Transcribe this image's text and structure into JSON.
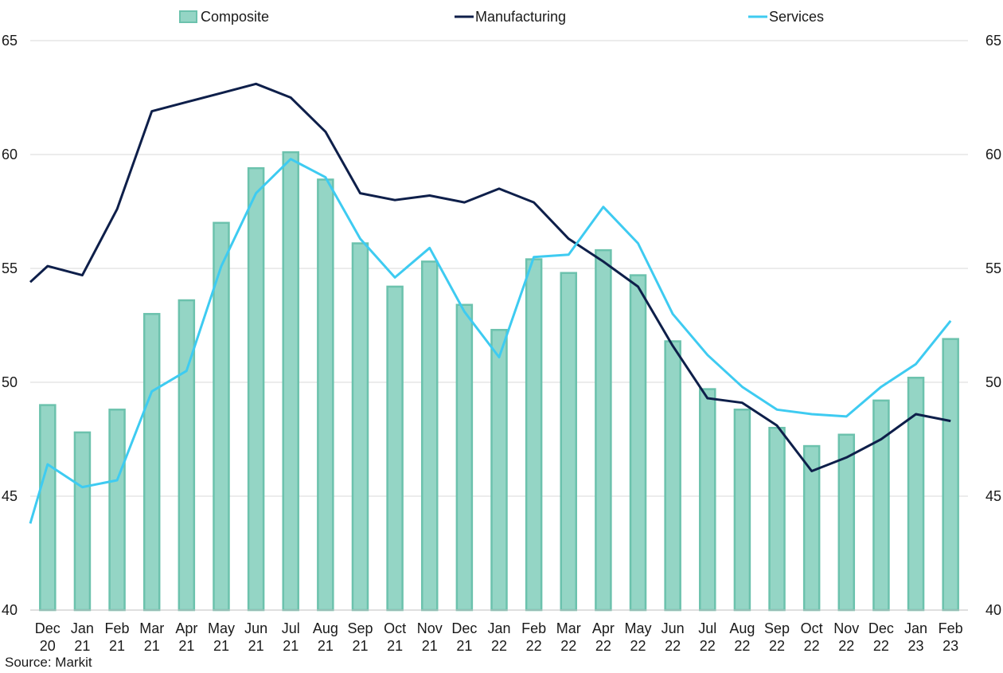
{
  "chart_data": {
    "type": "bar",
    "categories": [
      [
        "Dec",
        "20"
      ],
      [
        "Jan",
        "21"
      ],
      [
        "Feb",
        "21"
      ],
      [
        "Mar",
        "21"
      ],
      [
        "Apr",
        "21"
      ],
      [
        "May",
        "21"
      ],
      [
        "Jun",
        "21"
      ],
      [
        "Jul",
        "21"
      ],
      [
        "Aug",
        "21"
      ],
      [
        "Sep",
        "21"
      ],
      [
        "Oct",
        "21"
      ],
      [
        "Nov",
        "21"
      ],
      [
        "Dec",
        "21"
      ],
      [
        "Jan",
        "22"
      ],
      [
        "Feb",
        "22"
      ],
      [
        "Mar",
        "22"
      ],
      [
        "Apr",
        "22"
      ],
      [
        "May",
        "22"
      ],
      [
        "Jun",
        "22"
      ],
      [
        "Jul",
        "22"
      ],
      [
        "Aug",
        "22"
      ],
      [
        "Sep",
        "22"
      ],
      [
        "Oct",
        "22"
      ],
      [
        "Nov",
        "22"
      ],
      [
        "Dec",
        "22"
      ],
      [
        "Jan",
        "23"
      ],
      [
        "Feb",
        "23"
      ]
    ],
    "series": [
      {
        "name": "Composite",
        "type": "bar",
        "color": "#94d5c5",
        "edge_color": "#6cc2ad",
        "values": [
          49.0,
          47.8,
          48.8,
          53.0,
          53.6,
          57.0,
          59.4,
          60.1,
          58.9,
          56.1,
          54.2,
          55.3,
          53.4,
          52.3,
          55.4,
          54.8,
          55.8,
          54.7,
          51.8,
          49.7,
          48.8,
          48.0,
          47.2,
          47.7,
          49.2,
          50.2,
          51.9
        ]
      },
      {
        "name": "Manufacturing",
        "type": "line",
        "color": "#0e1f4a",
        "values": [
          55.1,
          54.7,
          57.6,
          61.9,
          62.3,
          62.7,
          63.1,
          62.5,
          61.0,
          58.3,
          58.0,
          58.2,
          57.9,
          58.5,
          57.9,
          56.3,
          55.3,
          54.2,
          51.6,
          49.3,
          49.1,
          48.1,
          46.1,
          46.7,
          47.5,
          48.6,
          48.3
        ],
        "line_start_value": 54.4
      },
      {
        "name": "Services",
        "type": "line",
        "color": "#3ecbf1",
        "values": [
          46.4,
          45.4,
          45.7,
          49.6,
          50.5,
          55.1,
          58.3,
          59.8,
          59.0,
          56.3,
          54.6,
          55.9,
          53.1,
          51.1,
          55.5,
          55.6,
          57.7,
          56.1,
          53.0,
          51.2,
          49.8,
          48.8,
          48.6,
          48.5,
          49.8,
          50.8,
          52.7
        ],
        "line_start_value": 43.8
      }
    ],
    "ylim": [
      40,
      65
    ],
    "y_ticks": [
      40,
      45,
      50,
      55,
      60,
      65
    ],
    "y_axis_sides": "left-and-right",
    "grid": true,
    "legend_position": "top"
  },
  "source": "Source: Markit"
}
